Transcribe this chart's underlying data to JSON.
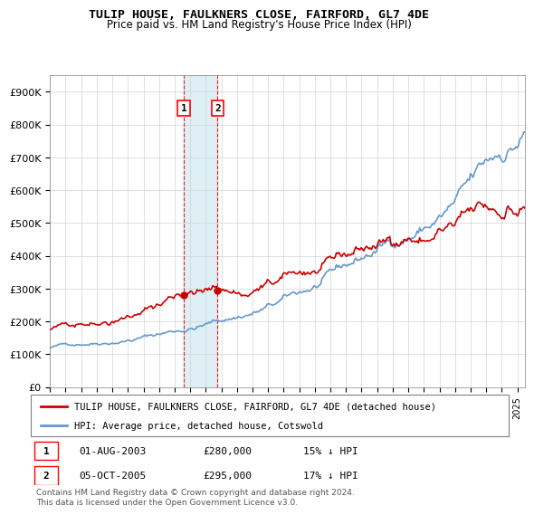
{
  "title": "TULIP HOUSE, FAULKNERS CLOSE, FAIRFORD, GL7 4DE",
  "subtitle": "Price paid vs. HM Land Registry's House Price Index (HPI)",
  "ylim": [
    0,
    950000
  ],
  "yticks": [
    0,
    100000,
    200000,
    300000,
    400000,
    500000,
    600000,
    700000,
    800000,
    900000
  ],
  "ytick_labels": [
    "£0",
    "£100K",
    "£200K",
    "£300K",
    "£400K",
    "£500K",
    "£600K",
    "£700K",
    "£800K",
    "£900K"
  ],
  "hpi_color": "#6699cc",
  "price_color": "#cc0000",
  "transaction1": {
    "date_label": "1",
    "date_str": "01-AUG-2003",
    "price": 280000,
    "hpi_pct": "15% ↓ HPI",
    "year_x": 2003.58
  },
  "transaction2": {
    "date_label": "2",
    "date_str": "05-OCT-2005",
    "price": 295000,
    "hpi_pct": "17% ↓ HPI",
    "year_x": 2005.75
  },
  "legend_label_red": "TULIP HOUSE, FAULKNERS CLOSE, FAIRFORD, GL7 4DE (detached house)",
  "legend_label_blue": "HPI: Average price, detached house, Cotswold",
  "footnote": "Contains HM Land Registry data © Crown copyright and database right 2024.\nThis data is licensed under the Open Government Licence v3.0.",
  "xmin": 1995,
  "xmax": 2025.5
}
